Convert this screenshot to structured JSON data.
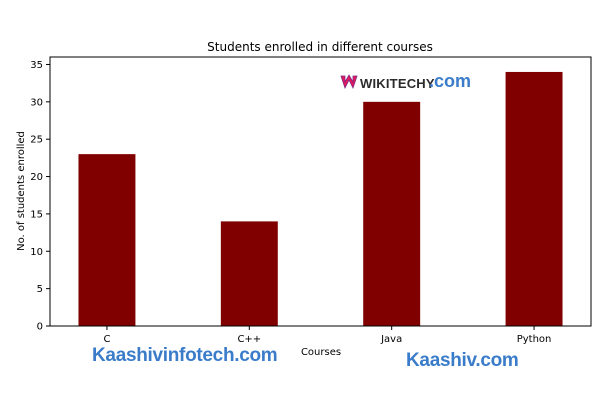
{
  "chart_data": {
    "type": "bar",
    "title": "Students enrolled in different courses",
    "xlabel": "Courses",
    "ylabel": "No. of students enrolled",
    "categories": [
      "C",
      "C++",
      "Java",
      "Python"
    ],
    "values": [
      23,
      14,
      30,
      34
    ],
    "ylim": [
      0,
      36
    ],
    "yticks": [
      0,
      5,
      10,
      15,
      20,
      25,
      30,
      35
    ],
    "bar_color": "#800000",
    "grid": false,
    "legend": "none"
  },
  "watermarks": {
    "logo_name": "WIKITECHY",
    "logo_domain": ".com",
    "left": "Kaashivinfotech.com",
    "right": "Kaashiv.com",
    "color": "#3a7cc9",
    "logo_colors": [
      "#e8175d",
      "#7b2b83"
    ]
  }
}
